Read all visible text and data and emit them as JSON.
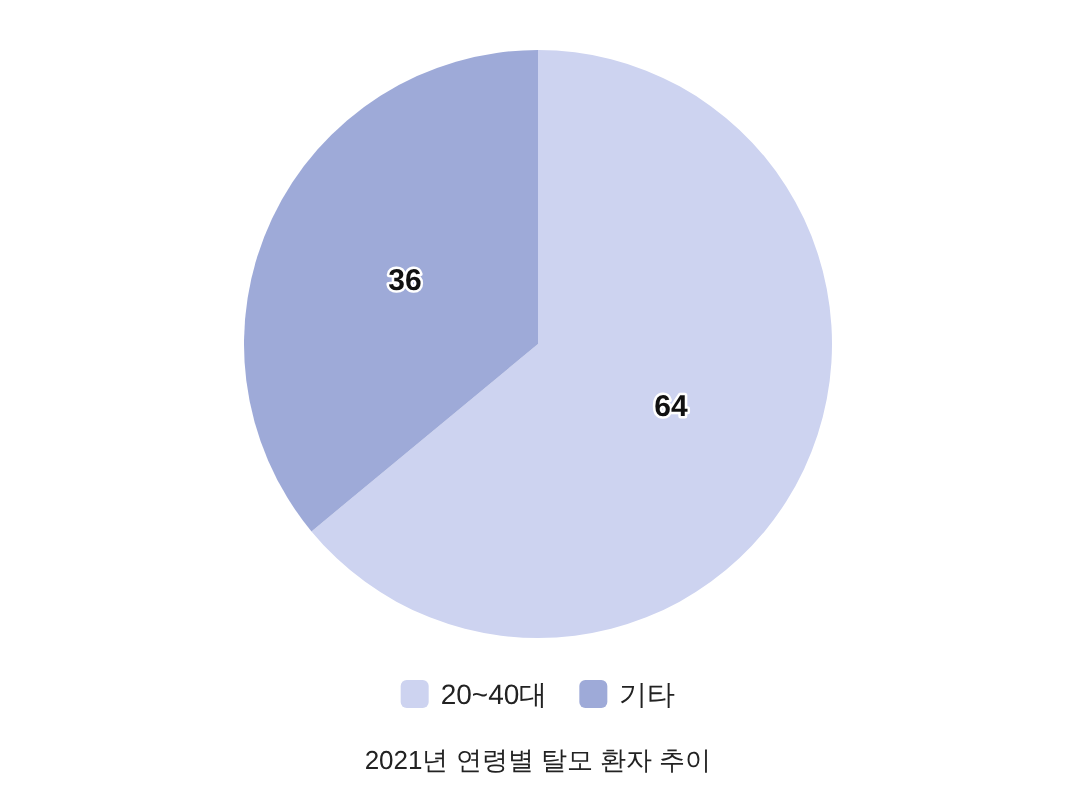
{
  "chart_data": {
    "type": "pie",
    "title": "2021년 연령별 탈모 환자 추이",
    "categories": [
      "20~40대",
      "기타"
    ],
    "values": [
      64,
      36
    ],
    "colors": [
      "#cdd3f0",
      "#9eaad8"
    ],
    "data_labels": true,
    "legend": "bottom"
  }
}
